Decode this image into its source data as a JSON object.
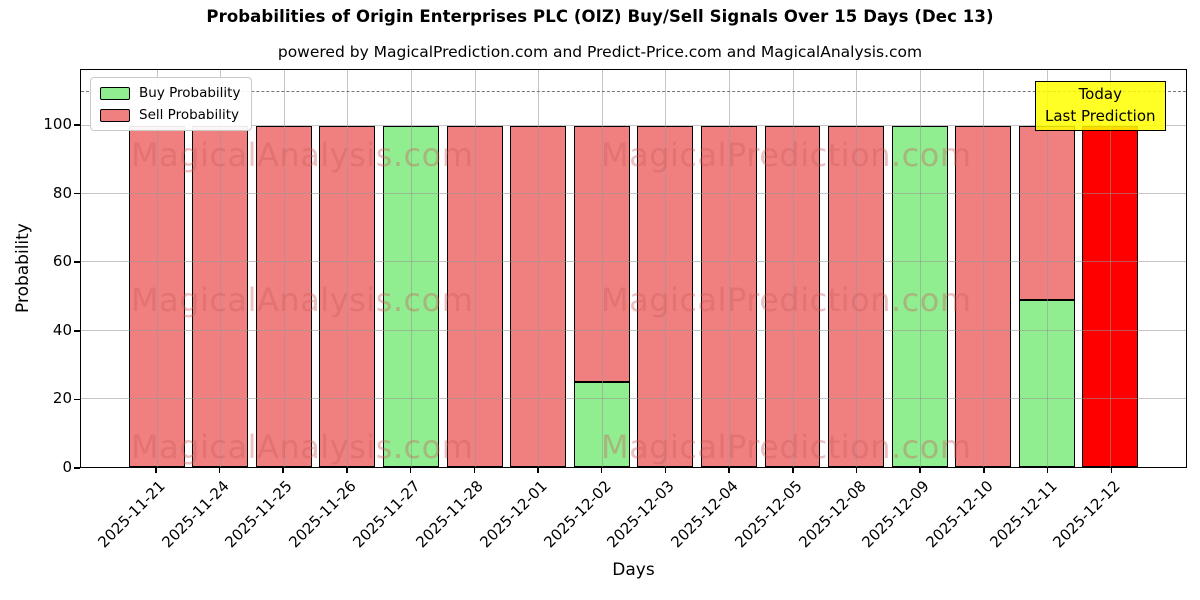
{
  "title": "Probabilities of Origin Enterprises PLC (OIZ) Buy/Sell Signals Over 15 Days (Dec 13)",
  "subtitle": "powered by MagicalPrediction.com and Predict-Price.com and MagicalAnalysis.com",
  "legend": {
    "items": [
      {
        "label": "Buy Probability",
        "color": "#90EE90"
      },
      {
        "label": "Sell Probability",
        "color": "#F08080"
      }
    ]
  },
  "annotation_box": {
    "line1": "Today",
    "line2": "Last Prediction",
    "bg_color": "#FFFF00"
  },
  "axes": {
    "ylabel": "Probability",
    "xlabel": "Days",
    "yticks": [
      0,
      20,
      40,
      60,
      80,
      100
    ],
    "dashed_line_y": 110
  },
  "watermarks": {
    "left_text": "MagicalAnalysis.com",
    "right_text": "MagicalPrediction.com",
    "rows": 3
  },
  "colors": {
    "buy": "#90EE90",
    "sell": "#F08080",
    "today_bar": "#FF0000",
    "bar_border": "#000000"
  },
  "chart_data": {
    "type": "bar",
    "stacked": true,
    "title": "Probabilities of Origin Enterprises PLC (OIZ) Buy/Sell Signals Over 15 Days (Dec 13)",
    "xlabel": "Days",
    "ylabel": "Probability",
    "ylim": [
      0,
      116.3
    ],
    "grid": true,
    "legend_position": "upper left",
    "categories": [
      "2025-11-21",
      "2025-11-24",
      "2025-11-25",
      "2025-11-26",
      "2025-11-27",
      "2025-11-28",
      "2025-12-01",
      "2025-12-02",
      "2025-12-03",
      "2025-12-04",
      "2025-12-05",
      "2025-12-08",
      "2025-12-09",
      "2025-12-10",
      "2025-12-11",
      "2025-12-12"
    ],
    "series": [
      {
        "name": "Buy Probability",
        "color": "#90EE90",
        "values": [
          0,
          0,
          0,
          0,
          100,
          0,
          0,
          25,
          0,
          0,
          0,
          0,
          100,
          0,
          49,
          0
        ]
      },
      {
        "name": "Sell Probability",
        "color": "#F08080",
        "values": [
          100,
          100,
          100,
          100,
          0,
          100,
          100,
          75,
          100,
          100,
          100,
          100,
          0,
          100,
          51,
          0
        ]
      },
      {
        "name": "Today / Last Prediction",
        "color": "#FF0000",
        "values": [
          0,
          0,
          0,
          0,
          0,
          0,
          0,
          0,
          0,
          0,
          0,
          0,
          0,
          0,
          0,
          100
        ]
      }
    ]
  }
}
